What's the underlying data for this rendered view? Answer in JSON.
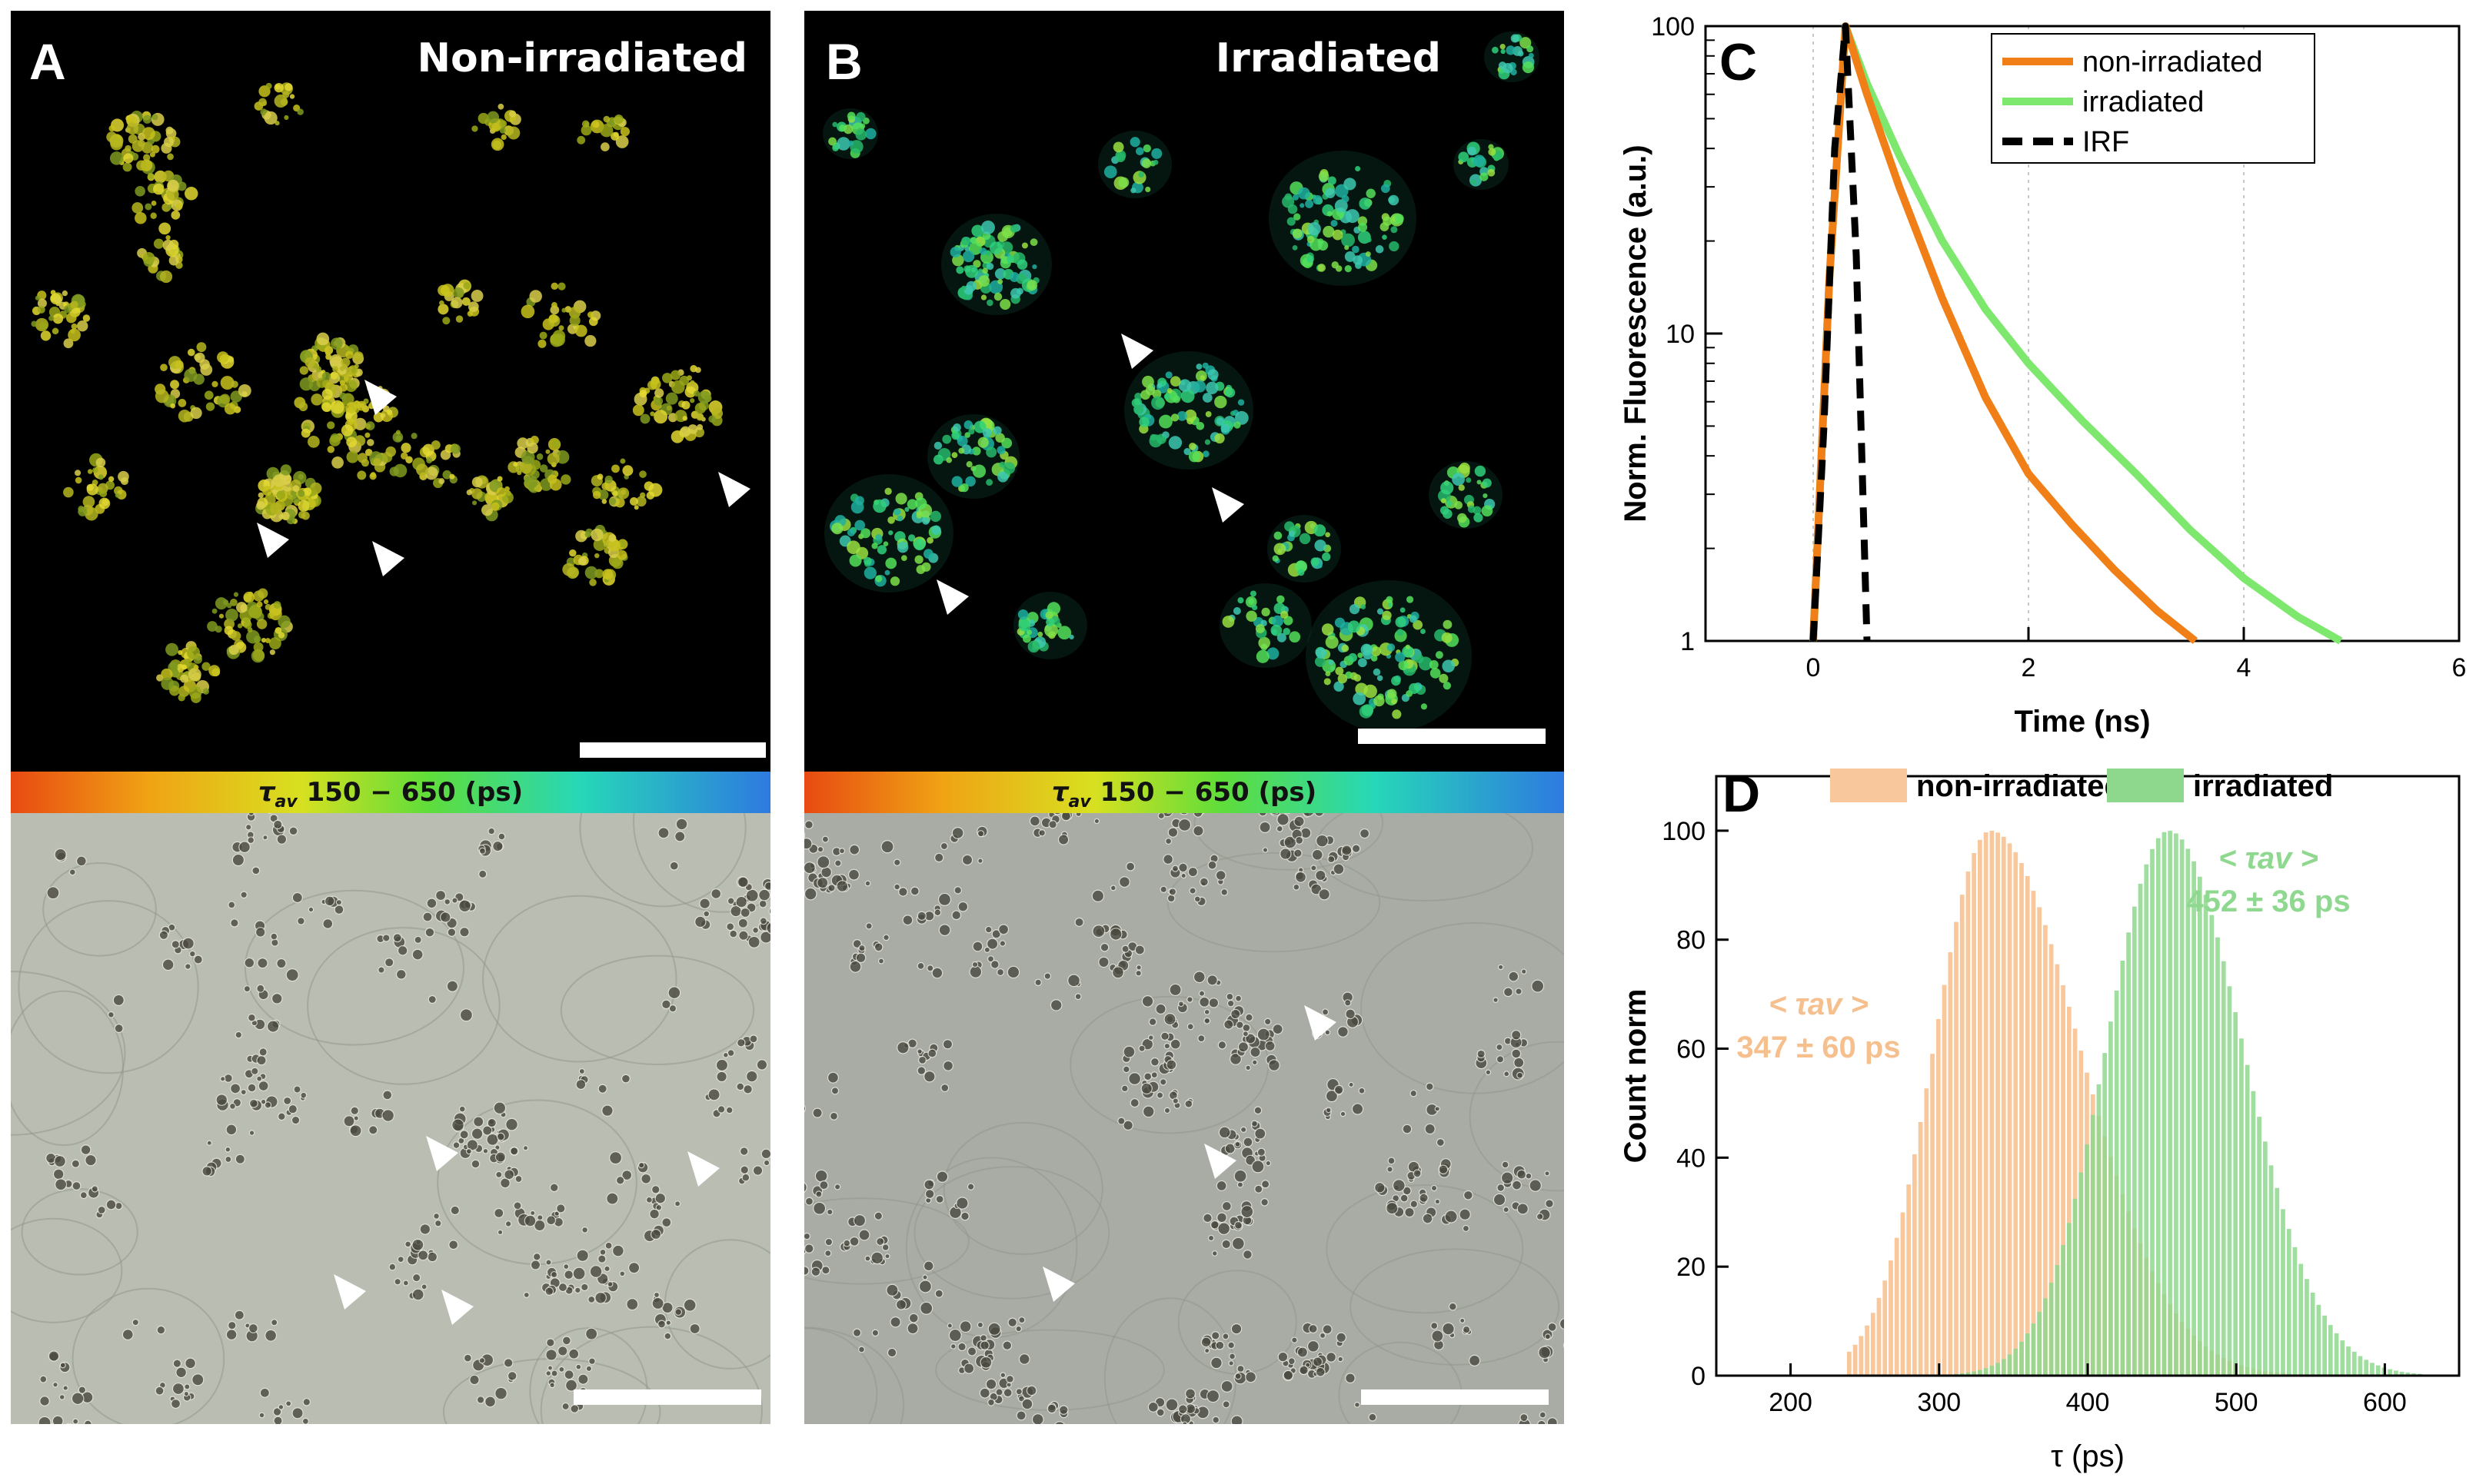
{
  "panel_a": {
    "letter": "A",
    "title": "Non-irradiated"
  },
  "panel_b": {
    "letter": "B",
    "title": "Irradiated"
  },
  "colorbar": {
    "label": "τav 150 − 650 (ps)",
    "symbol": "τ",
    "subscript": "av",
    "range_text": "150 − 650 (ps)",
    "min_ps": 150,
    "max_ps": 650
  },
  "colors": {
    "non_irradiated": "#f07f18",
    "irradiated": "#7ee86e",
    "irf": "#000000",
    "hist_non": "#f8c89c",
    "hist_irr": "#8ed88e",
    "annot_non": "#f5c08e",
    "annot_irr": "#8fd88f"
  },
  "chart_data": [
    {
      "panel": "C",
      "type": "line",
      "xlabel": "Time (ns)",
      "ylabel": "Norm. Fluorescence (a.u.)",
      "xlim": [
        -1,
        6
      ],
      "ylim": [
        1,
        100
      ],
      "yscale": "log",
      "xticks": [
        0,
        2,
        4,
        6
      ],
      "yticks": [
        1,
        10,
        100
      ],
      "grid": "vertical dotted",
      "legend": "top-right",
      "series": [
        {
          "name": "non-irradiated",
          "x": [
            0.0,
            0.15,
            0.3,
            0.5,
            0.8,
            1.2,
            1.6,
            2.0,
            2.4,
            2.8,
            3.2,
            3.55
          ],
          "y": [
            1,
            15,
            100,
            60,
            30,
            13,
            6.2,
            3.5,
            2.4,
            1.7,
            1.25,
            1
          ]
        },
        {
          "name": "irradiated",
          "x": [
            0.0,
            0.15,
            0.3,
            0.5,
            0.8,
            1.2,
            1.6,
            2.0,
            2.5,
            3.0,
            3.5,
            4.0,
            4.5,
            4.9
          ],
          "y": [
            1,
            15,
            100,
            65,
            38,
            20,
            12,
            8,
            5.2,
            3.5,
            2.3,
            1.6,
            1.2,
            1
          ]
        },
        {
          "name": "IRF",
          "x": [
            0.0,
            0.1,
            0.2,
            0.3,
            0.4,
            0.5
          ],
          "y": [
            1,
            5,
            40,
            100,
            18,
            1
          ]
        }
      ]
    },
    {
      "panel": "D",
      "type": "bar",
      "xlabel": "τ (ps)",
      "ylabel": "Count norm",
      "xlim": [
        150,
        650
      ],
      "ylim": [
        0,
        110
      ],
      "xticks": [
        200,
        300,
        400,
        500,
        600
      ],
      "yticks": [
        0,
        20,
        40,
        60,
        80,
        100
      ],
      "legend": "top",
      "series": [
        {
          "name": "non-irradiated",
          "distribution": "skewed",
          "mode_ps": 335,
          "min_ps": 240,
          "max_ps": 590,
          "sigma_left": 38,
          "sigma_right": 60,
          "peak": 100
        },
        {
          "name": "irradiated",
          "distribution": "skewed",
          "mode_ps": 455,
          "min_ps": 215,
          "max_ps": 650,
          "sigma_left": 42,
          "sigma_right": 50,
          "peak": 100
        }
      ],
      "annotations": [
        {
          "series": "non-irradiated",
          "label_symbol": "< τav >",
          "value": "347 ± 60 ps"
        },
        {
          "series": "irradiated",
          "label_symbol": "< τav >",
          "value": "452 ± 36 ps"
        }
      ]
    }
  ]
}
